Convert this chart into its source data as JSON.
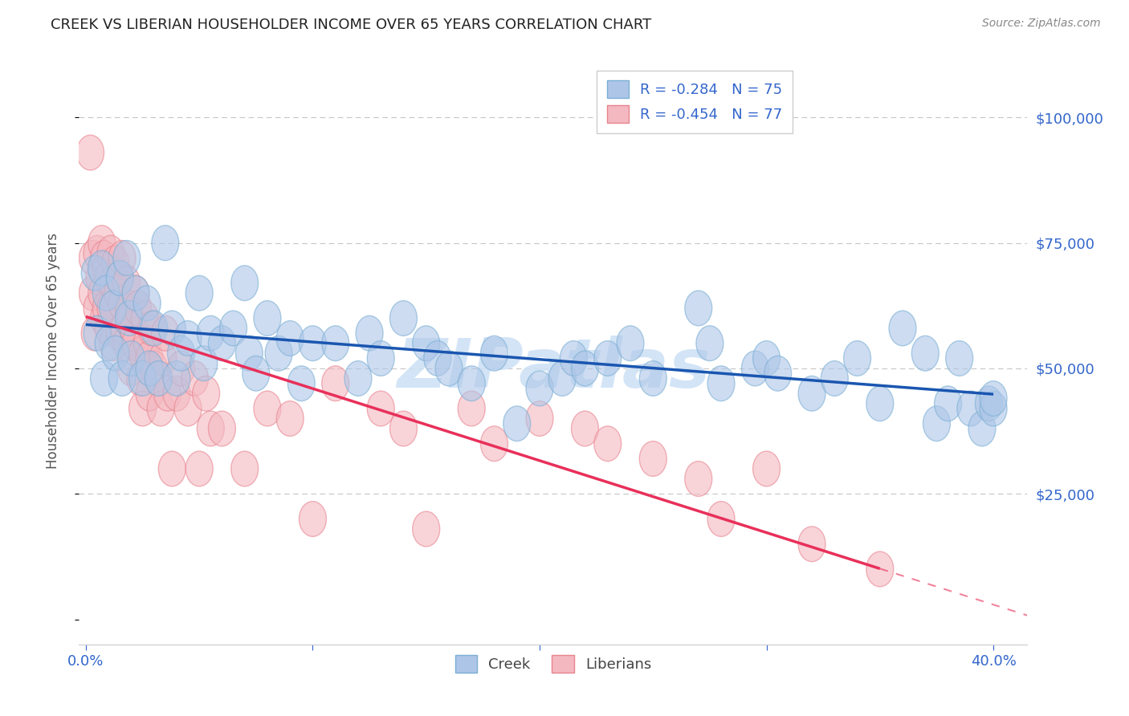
{
  "title": "CREEK VS LIBERIAN HOUSEHOLDER INCOME OVER 65 YEARS CORRELATION CHART",
  "source": "Source: ZipAtlas.com",
  "ylabel": "Householder Income Over 65 years",
  "xlim": [
    -0.003,
    0.415
  ],
  "ylim": [
    -5000,
    112000
  ],
  "plot_xlim": [
    0.0,
    0.4
  ],
  "creek_color": "#adc6e8",
  "creek_edge_color": "#7bafd4",
  "liberian_color": "#f4b8c1",
  "liberian_edge_color": "#e8848e",
  "creek_R": -0.284,
  "creek_N": 75,
  "liberian_R": -0.454,
  "liberian_N": 77,
  "trend_blue_color": "#1a56b0",
  "trend_pink_color": "#e8305a",
  "grid_color": "#c0c0c0",
  "background_color": "#ffffff",
  "watermark": "ZIPatlas",
  "watermark_color": "#cce0f5",
  "tick_color": "#3366cc",
  "ytick_vals": [
    0,
    25000,
    50000,
    75000,
    100000
  ],
  "ytick_labels": [
    "",
    "$25,000",
    "$50,000",
    "$75,000",
    "$100,000"
  ],
  "xtick_vals": [
    0.0,
    0.1,
    0.2,
    0.3,
    0.4
  ],
  "xtick_labels": [
    "0.0%",
    "",
    "",
    "",
    "40.0%"
  ],
  "creek_x": [
    0.004,
    0.005,
    0.007,
    0.008,
    0.009,
    0.01,
    0.012,
    0.013,
    0.015,
    0.016,
    0.018,
    0.019,
    0.02,
    0.022,
    0.025,
    0.027,
    0.028,
    0.03,
    0.032,
    0.035,
    0.038,
    0.04,
    0.042,
    0.045,
    0.05,
    0.052,
    0.055,
    0.06,
    0.065,
    0.07,
    0.072,
    0.075,
    0.08,
    0.085,
    0.09,
    0.095,
    0.1,
    0.11,
    0.12,
    0.125,
    0.13,
    0.14,
    0.15,
    0.155,
    0.16,
    0.17,
    0.18,
    0.19,
    0.2,
    0.21,
    0.215,
    0.22,
    0.23,
    0.24,
    0.25,
    0.27,
    0.275,
    0.28,
    0.295,
    0.3,
    0.305,
    0.32,
    0.33,
    0.34,
    0.35,
    0.36,
    0.37,
    0.375,
    0.38,
    0.385,
    0.39,
    0.395,
    0.398,
    0.4,
    0.4
  ],
  "creek_y": [
    69000,
    57000,
    70000,
    48000,
    65000,
    55000,
    62000,
    53000,
    68000,
    48000,
    72000,
    60000,
    52000,
    65000,
    48000,
    63000,
    50000,
    58000,
    48000,
    75000,
    58000,
    48000,
    53000,
    56000,
    65000,
    51000,
    57000,
    55000,
    58000,
    67000,
    53000,
    49000,
    60000,
    53000,
    56000,
    47000,
    55000,
    55000,
    48000,
    57000,
    52000,
    60000,
    55000,
    52000,
    50000,
    47000,
    53000,
    39000,
    46000,
    48000,
    52000,
    50000,
    52000,
    55000,
    48000,
    62000,
    55000,
    47000,
    50000,
    52000,
    49000,
    45000,
    48000,
    52000,
    43000,
    58000,
    53000,
    39000,
    43000,
    52000,
    42000,
    38000,
    43000,
    42000,
    44000
  ],
  "liberian_x": [
    0.002,
    0.003,
    0.003,
    0.004,
    0.005,
    0.005,
    0.006,
    0.007,
    0.007,
    0.008,
    0.008,
    0.009,
    0.009,
    0.01,
    0.01,
    0.011,
    0.011,
    0.012,
    0.012,
    0.013,
    0.014,
    0.015,
    0.015,
    0.016,
    0.016,
    0.017,
    0.018,
    0.018,
    0.019,
    0.02,
    0.02,
    0.021,
    0.022,
    0.022,
    0.023,
    0.024,
    0.025,
    0.025,
    0.026,
    0.027,
    0.028,
    0.028,
    0.029,
    0.03,
    0.032,
    0.033,
    0.034,
    0.035,
    0.036,
    0.038,
    0.04,
    0.042,
    0.045,
    0.048,
    0.05,
    0.053,
    0.055,
    0.06,
    0.07,
    0.08,
    0.09,
    0.1,
    0.11,
    0.13,
    0.14,
    0.15,
    0.17,
    0.18,
    0.2,
    0.22,
    0.23,
    0.25,
    0.27,
    0.28,
    0.3,
    0.32,
    0.35
  ],
  "liberian_y": [
    93000,
    65000,
    72000,
    57000,
    62000,
    73000,
    68000,
    75000,
    65000,
    72000,
    60000,
    70000,
    62000,
    68000,
    58000,
    73000,
    62000,
    67000,
    55000,
    71000,
    65000,
    68000,
    57000,
    72000,
    63000,
    58000,
    67000,
    55000,
    62000,
    60000,
    50000,
    58000,
    55000,
    65000,
    62000,
    48000,
    53000,
    42000,
    60000,
    55000,
    52000,
    45000,
    58000,
    50000,
    48000,
    42000,
    52000,
    57000,
    45000,
    30000,
    45000,
    50000,
    42000,
    48000,
    30000,
    45000,
    38000,
    38000,
    30000,
    42000,
    40000,
    20000,
    47000,
    42000,
    38000,
    18000,
    42000,
    35000,
    40000,
    38000,
    35000,
    32000,
    28000,
    20000,
    30000,
    15000,
    10000
  ]
}
